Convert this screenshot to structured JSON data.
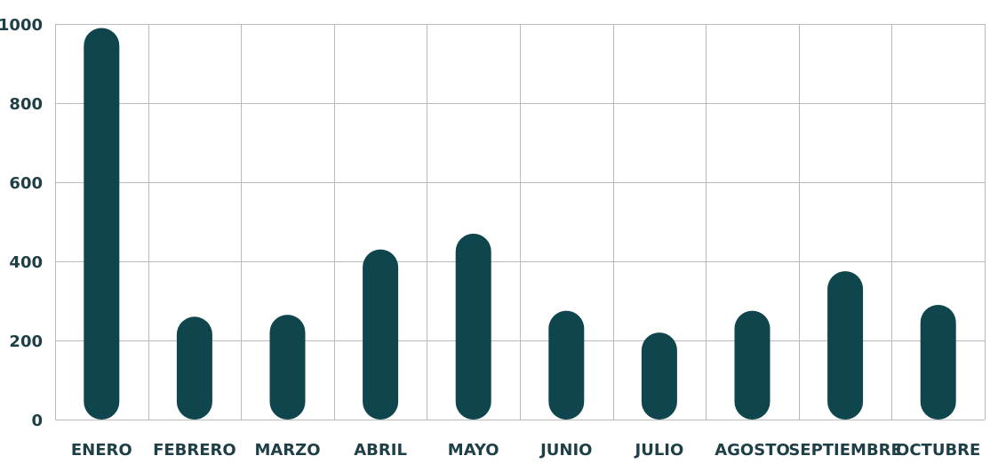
{
  "chart_data": {
    "type": "bar",
    "categories": [
      "Enero",
      "Febrero",
      "Marzo",
      "Abril",
      "Mayo",
      "Junio",
      "Julio",
      "Agosto",
      "Septiembre",
      "Octubre"
    ],
    "values": [
      990,
      260,
      265,
      430,
      470,
      275,
      220,
      275,
      375,
      290
    ],
    "title": "",
    "xlabel": "",
    "ylabel": "",
    "ylim": [
      0,
      1000
    ],
    "yticks": [
      0,
      200,
      400,
      600,
      800,
      1000
    ],
    "grid": true,
    "legend": "none",
    "colors": {
      "bar": "#0f454c",
      "grid": "#b9b9b9",
      "text": "#1f3f46"
    }
  }
}
